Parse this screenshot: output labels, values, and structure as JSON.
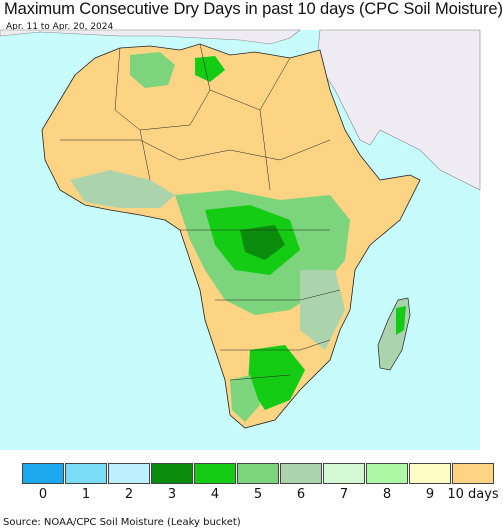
{
  "title": "Maximum Consecutive Dry Days in past 10 days (CPC Soil Moisture)",
  "subtitle": "Apr. 11 to Apr. 20, 2024",
  "source": "Source: NOAA/CPC Soil Moisture (Leaky bucket)",
  "colors": {
    "ocean": "#c8fcfc",
    "outside_land": "#eeecf2",
    "dry_10": "#fcd484",
    "border": "#222222"
  },
  "legend": {
    "items": [
      {
        "label": "0",
        "color": "#1ca8ec"
      },
      {
        "label": "1",
        "color": "#7cdcf8"
      },
      {
        "label": "2",
        "color": "#bcf0fc"
      },
      {
        "label": "3",
        "color": "#0c8c0c"
      },
      {
        "label": "4",
        "color": "#14cc14"
      },
      {
        "label": "5",
        "color": "#7cd47c"
      },
      {
        "label": "6",
        "color": "#acd4ac"
      },
      {
        "label": "7",
        "color": "#d4f8d4"
      },
      {
        "label": "8",
        "color": "#acf8a4"
      },
      {
        "label": "9",
        "color": "#fcfcc4"
      },
      {
        "label": "10 days",
        "color": "#fcd484"
      }
    ]
  }
}
